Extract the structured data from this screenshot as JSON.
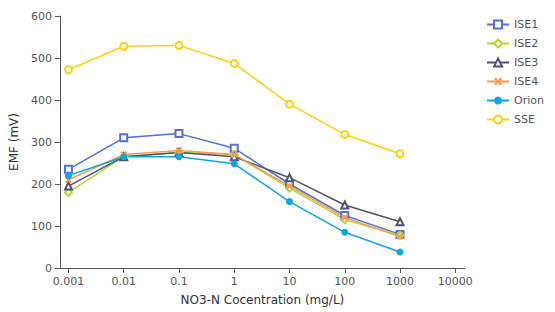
{
  "chart_data": {
    "type": "line",
    "x": [
      0.001,
      0.01,
      0.1,
      1,
      10,
      100,
      1000
    ],
    "series": [
      {
        "name": "ISE1",
        "values": [
          235,
          310,
          320,
          285,
          200,
          125,
          80
        ],
        "marker": "square-open"
      },
      {
        "name": "ISE2",
        "values": [
          180,
          265,
          275,
          270,
          190,
          115,
          78
        ],
        "marker": "diamond-open"
      },
      {
        "name": "ISE3",
        "values": [
          195,
          265,
          275,
          265,
          215,
          150,
          110
        ],
        "marker": "triangle-open"
      },
      {
        "name": "ISE4",
        "values": [
          210,
          270,
          280,
          270,
          195,
          120,
          75
        ],
        "marker": "x"
      },
      {
        "name": "Orion",
        "values": [
          220,
          265,
          265,
          248,
          158,
          85,
          38
        ],
        "marker": "circle"
      },
      {
        "name": "SSE",
        "values": [
          472,
          528,
          530,
          487,
          390,
          318,
          272
        ],
        "marker": "circle-open"
      }
    ],
    "xlabel": "NO3-N Cocentration (mg/L)",
    "ylabel": "EMF (mV)",
    "log": "x",
    "xlim": [
      0.0007,
      15000
    ],
    "xticks": [
      0.001,
      0.01,
      0.1,
      1,
      10,
      100,
      1000,
      10000
    ],
    "ylim": [
      0,
      600
    ],
    "yticks": [
      0,
      100,
      200,
      300,
      400,
      500,
      600
    ],
    "grid": false,
    "legend": "upper right"
  }
}
